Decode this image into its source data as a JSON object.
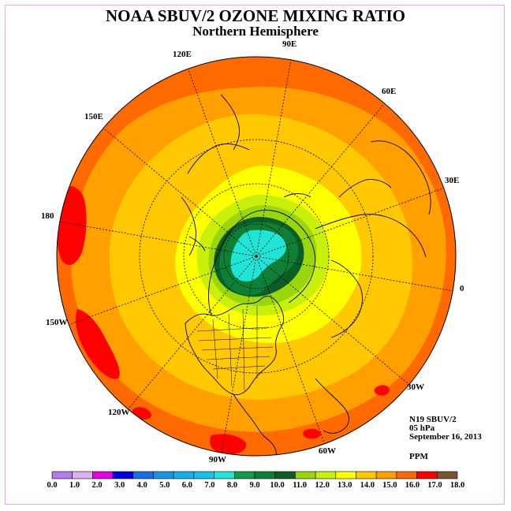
{
  "title": "NOAA SBUV/2 OZONE MIXING RATIO",
  "subtitle": "Northern Hemisphere",
  "longitude_labels": [
    "90E",
    "60E",
    "30E",
    "0",
    "30W",
    "60W",
    "90W",
    "120W",
    "150W",
    "180",
    "150E",
    "120E"
  ],
  "info": {
    "satellite": "N19 SBUV/2",
    "level": "05 hPa",
    "date": "September 16, 2013",
    "units": "PPM"
  },
  "colorbar": {
    "ticks": [
      "0.0",
      "1.0",
      "2.0",
      "3.0",
      "4.0",
      "5.0",
      "6.0",
      "7.0",
      "8.0",
      "9.0",
      "10.0",
      "11.0",
      "12.0",
      "13.0",
      "14.0",
      "15.0",
      "16.0",
      "17.0",
      "18.0"
    ],
    "colors": [
      "#b57bee",
      "#dcb1f2",
      "#e600e6",
      "#0000dd",
      "#1a6fe8",
      "#1496e8",
      "#13b0ec",
      "#15c4ea",
      "#1ee5d5",
      "#0f9d4a",
      "#0e8036",
      "#0b5e28",
      "#9ad60b",
      "#c8f00a",
      "#ffff00",
      "#ffc800",
      "#ff9f00",
      "#ff6a00",
      "#ff0000",
      "#7a5230"
    ]
  },
  "map_colors": {
    "outer": "#ff6a00",
    "band15": "#ff9f00",
    "band14": "#ffc800",
    "band13": "#ffff00",
    "band12": "#c8f00a",
    "band11": "#9ad60b",
    "band10": "#0b5e28",
    "band9": "#0e8036",
    "band8": "#1ee5d5",
    "band16": "#ff0000"
  }
}
